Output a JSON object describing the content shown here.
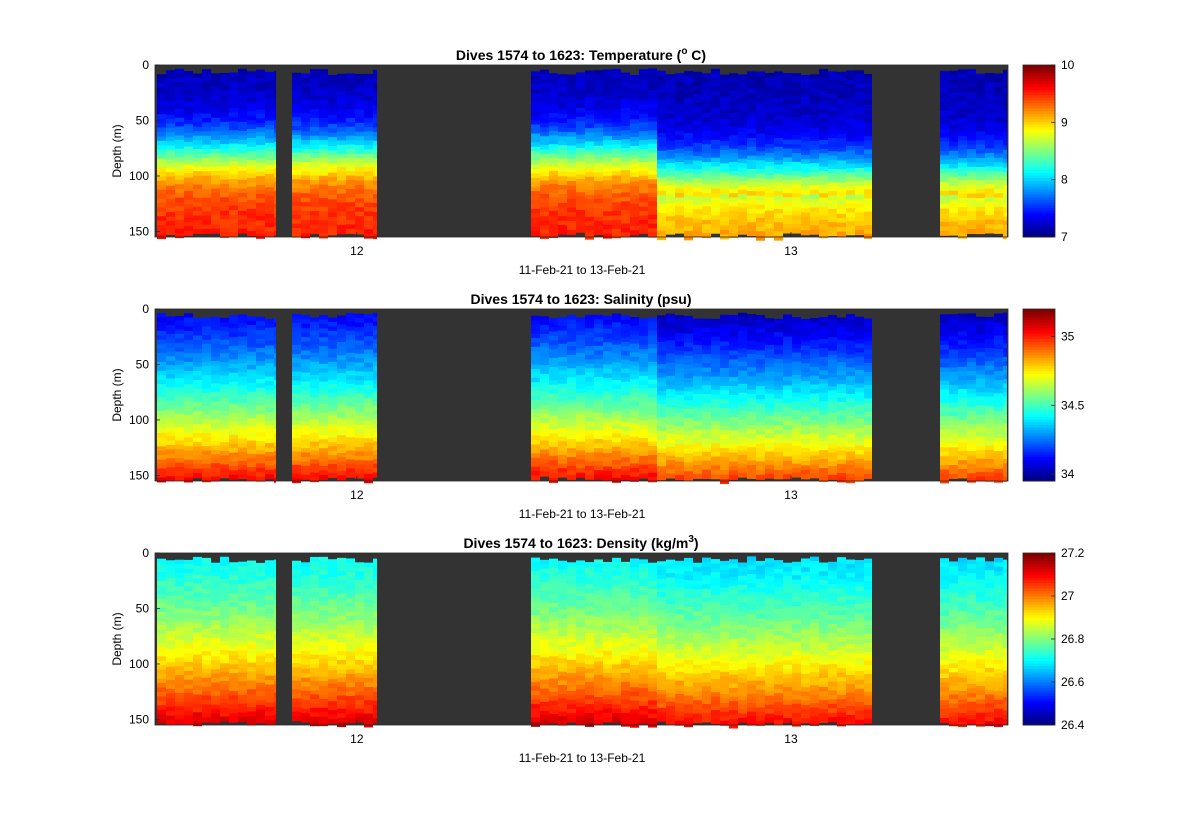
{
  "chart_data": [
    {
      "type": "heatmap",
      "title_main": "Dives 1574 to 1623: Temperature (",
      "title_sup": "o",
      "title_tail": " C)",
      "ylabel": "Depth (m)",
      "xlabel": "11-Feb-21 to 13-Feb-21",
      "x_ticks": [
        "12",
        "13"
      ],
      "x_tick_days": [
        12,
        13
      ],
      "xlim_days": [
        11.535,
        13.5
      ],
      "y_ticks": [
        0,
        50,
        100,
        150
      ],
      "ylim": [
        0,
        155
      ],
      "y_reversed": true,
      "colormap": "jet",
      "no_data_color": "#333333",
      "colorbar_ticks": [
        "10",
        "9",
        "8",
        "7"
      ],
      "colorbar_tick_values": [
        10,
        9,
        8,
        7
      ],
      "clim": [
        7,
        10
      ],
      "grid": false
    },
    {
      "type": "heatmap",
      "title_main": "Dives 1574 to 1623: Salinity (psu)",
      "title_sup": "",
      "title_tail": "",
      "ylabel": "Depth (m)",
      "xlabel": "11-Feb-21 to 13-Feb-21",
      "x_ticks": [
        "12",
        "13"
      ],
      "x_tick_days": [
        12,
        13
      ],
      "xlim_days": [
        11.535,
        13.5
      ],
      "y_ticks": [
        0,
        50,
        100,
        150
      ],
      "ylim": [
        0,
        155
      ],
      "y_reversed": true,
      "colormap": "jet",
      "no_data_color": "#333333",
      "colorbar_ticks": [
        "35",
        "34.5",
        "34"
      ],
      "colorbar_tick_values": [
        35,
        34.5,
        34
      ],
      "clim": [
        33.95,
        35.2
      ],
      "grid": false
    },
    {
      "type": "heatmap",
      "title_main": "Dives 1574 to 1623: Density (kg/m",
      "title_sup": "3",
      "title_tail": ")",
      "ylabel": "Depth (m)",
      "xlabel": "11-Feb-21 to 13-Feb-21",
      "x_ticks": [
        "12",
        "13"
      ],
      "x_tick_days": [
        12,
        13
      ],
      "xlim_days": [
        11.535,
        13.5
      ],
      "y_ticks": [
        0,
        50,
        100,
        150
      ],
      "ylim": [
        0,
        155
      ],
      "y_reversed": true,
      "colormap": "jet",
      "no_data_color": "#333333",
      "colorbar_ticks": [
        "27.2",
        "27",
        "26.8",
        "26.6",
        "26.4"
      ],
      "colorbar_tick_values": [
        27.2,
        27.0,
        26.8,
        26.6,
        26.4
      ],
      "clim": [
        26.4,
        27.2
      ],
      "grid": false
    }
  ]
}
